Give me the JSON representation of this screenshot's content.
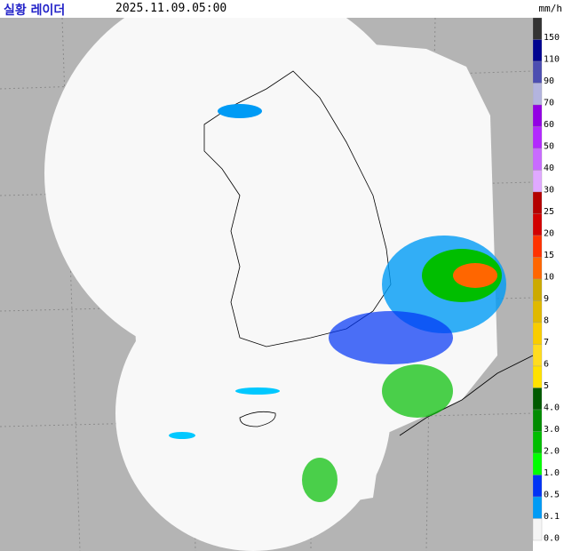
{
  "header": {
    "title": "실황 레이더",
    "datetime": "2025.11.09.05:00"
  },
  "legend": {
    "unit": "mm/h",
    "items": [
      {
        "label": "150",
        "color": "#333333"
      },
      {
        "label": "110",
        "color": "#000390"
      },
      {
        "label": "90",
        "color": "#4c4eb1"
      },
      {
        "label": "70",
        "color": "#b3b4de"
      },
      {
        "label": "60",
        "color": "#9300e4"
      },
      {
        "label": "50",
        "color": "#b329ff"
      },
      {
        "label": "40",
        "color": "#c96bff"
      },
      {
        "label": "30",
        "color": "#e0a9ff"
      },
      {
        "label": "25",
        "color": "#b40000"
      },
      {
        "label": "20",
        "color": "#d20000"
      },
      {
        "label": "15",
        "color": "#ff3200"
      },
      {
        "label": "10",
        "color": "#ff6600"
      },
      {
        "label": "9",
        "color": "#ccaa00"
      },
      {
        "label": "8",
        "color": "#e0b900"
      },
      {
        "label": "7",
        "color": "#f9cd00"
      },
      {
        "label": "6",
        "color": "#ffdc1f"
      },
      {
        "label": "5",
        "color": "#ffe100"
      },
      {
        "label": "4.0",
        "color": "#005a00"
      },
      {
        "label": "3.0",
        "color": "#008c00"
      },
      {
        "label": "2.0",
        "color": "#00be00"
      },
      {
        "label": "1.0",
        "color": "#00ff00"
      },
      {
        "label": "0.5",
        "color": "#0033f5"
      },
      {
        "label": "0.1",
        "color": "#009bf5"
      },
      {
        "label": "0.0",
        "color": "#f5f5f5"
      }
    ]
  }
}
